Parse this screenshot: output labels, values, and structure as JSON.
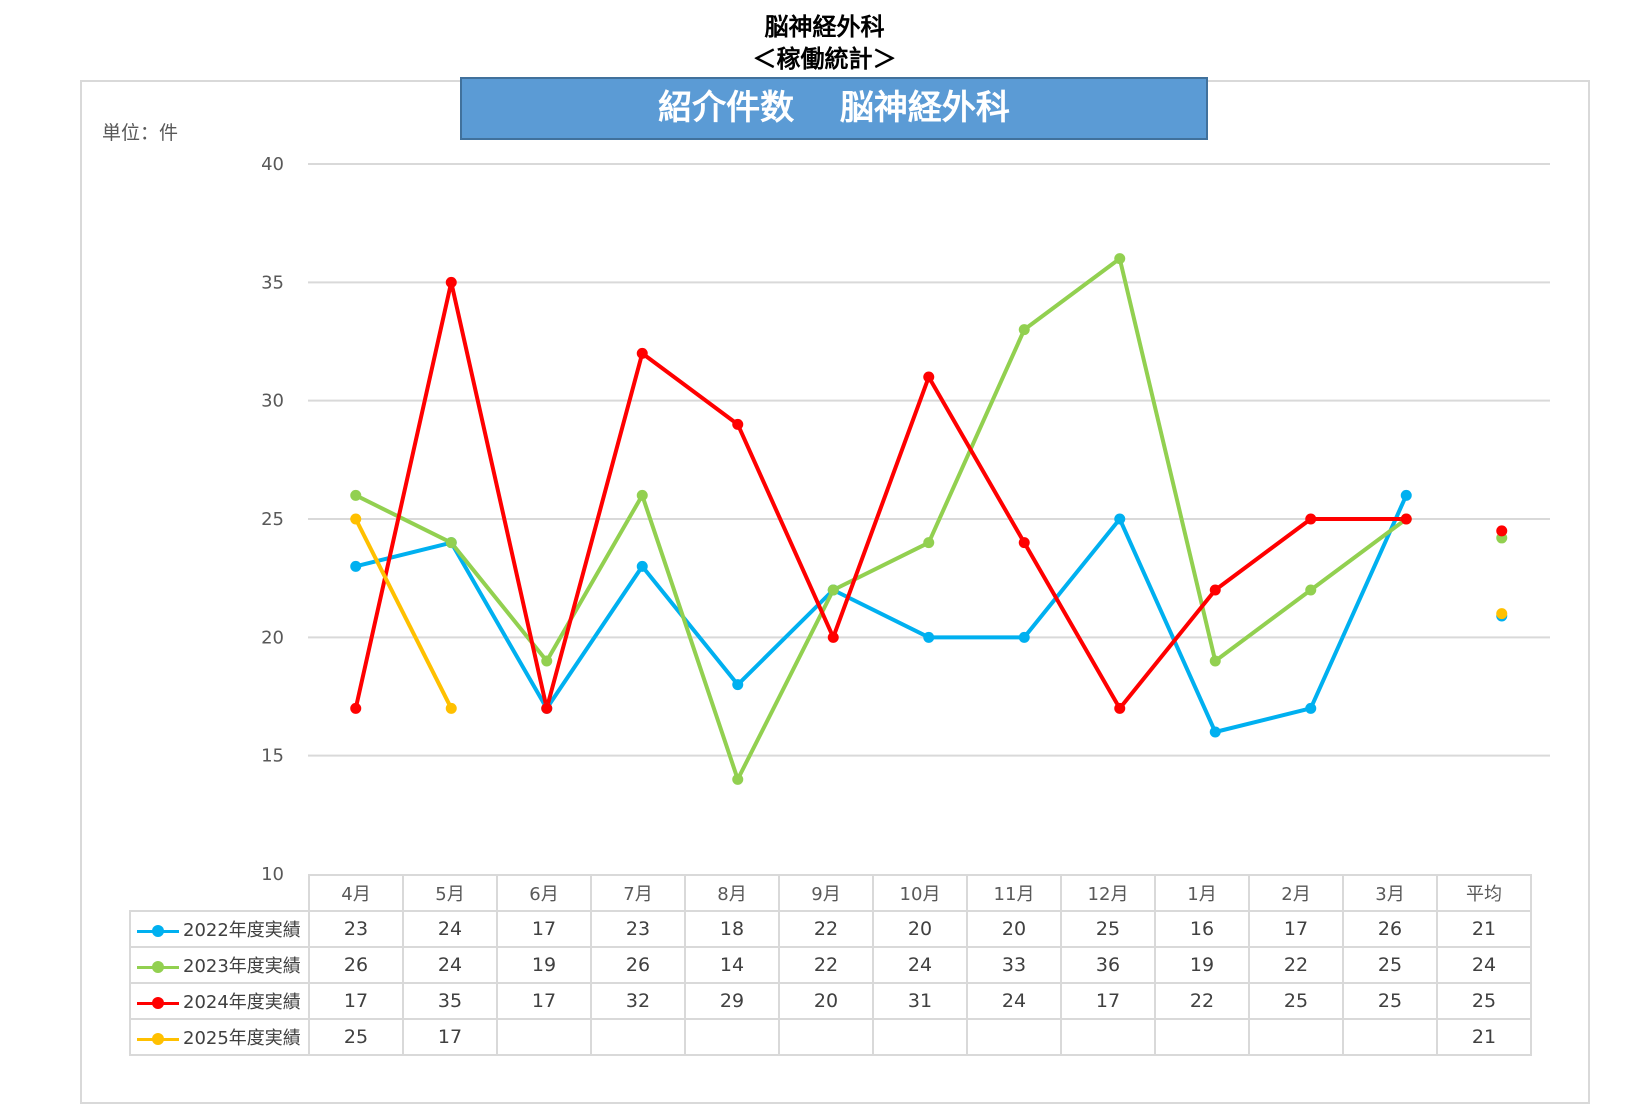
{
  "header": {
    "title": "脳神経外科",
    "subtitle": "＜稼働統計＞"
  },
  "chart_data": {
    "type": "line",
    "title": "紹介件数　 脳神経外科",
    "unit_label": "単位：件",
    "ylim": [
      10,
      40
    ],
    "yticks": [
      10,
      15,
      20,
      25,
      30,
      35,
      40
    ],
    "grid": true,
    "categories": [
      "4月",
      "5月",
      "6月",
      "7月",
      "8月",
      "9月",
      "10月",
      "11月",
      "12月",
      "1月",
      "2月",
      "3月"
    ],
    "average_label": "平均",
    "series": [
      {
        "name": "2022年度実績",
        "color": "#00b0f0",
        "values": [
          23,
          24,
          17,
          23,
          18,
          22,
          20,
          20,
          25,
          16,
          17,
          26
        ],
        "average": 21,
        "average_exact": 20.9
      },
      {
        "name": "2023年度実績",
        "color": "#92d050",
        "values": [
          26,
          24,
          19,
          26,
          14,
          22,
          24,
          33,
          36,
          19,
          22,
          25
        ],
        "average": 24,
        "average_exact": 24.2
      },
      {
        "name": "2024年度実績",
        "color": "#ff0000",
        "values": [
          17,
          35,
          17,
          32,
          29,
          20,
          31,
          24,
          17,
          22,
          25,
          25
        ],
        "average": 25,
        "average_exact": 24.5
      },
      {
        "name": "2025年度実績",
        "color": "#ffc000",
        "values": [
          25,
          17,
          null,
          null,
          null,
          null,
          null,
          null,
          null,
          null,
          null,
          null
        ],
        "average": 21,
        "average_exact": 21
      }
    ]
  }
}
